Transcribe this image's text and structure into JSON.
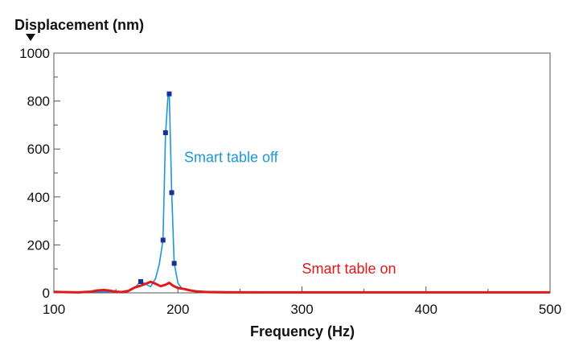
{
  "chart_data": {
    "type": "line",
    "ylabel": "Displacement (nm)",
    "xlabel": "Frequency (Hz)",
    "xlim": [
      100,
      500
    ],
    "ylim": [
      0,
      1000
    ],
    "x_ticks": [
      100,
      200,
      300,
      400,
      500
    ],
    "y_ticks": [
      0,
      200,
      400,
      600,
      800,
      1000
    ],
    "grid": false,
    "series": [
      {
        "name": "Smart table off",
        "color": "#1f96d8",
        "x": [
          100,
          120,
          140,
          155,
          162,
          166,
          170,
          174,
          178,
          182,
          185,
          188,
          190,
          192,
          193,
          195,
          197,
          200,
          203,
          207,
          212,
          220,
          240,
          300,
          400,
          500
        ],
        "y": [
          5,
          4,
          4,
          6,
          12,
          25,
          50,
          36,
          26,
          60,
          120,
          220,
          660,
          820,
          830,
          420,
          125,
          40,
          20,
          12,
          8,
          6,
          5,
          3,
          3,
          3
        ],
        "markers": [
          {
            "x": 170,
            "y": 47
          },
          {
            "x": 188,
            "y": 220
          },
          {
            "x": 190,
            "y": 668
          },
          {
            "x": 193,
            "y": 830
          },
          {
            "x": 195,
            "y": 418
          },
          {
            "x": 197,
            "y": 123
          }
        ]
      },
      {
        "name": "Smart table on",
        "color": "#e01a1a",
        "x": [
          100,
          110,
          120,
          130,
          135,
          140,
          145,
          150,
          155,
          160,
          165,
          170,
          175,
          178,
          182,
          186,
          190,
          193,
          196,
          200,
          205,
          210,
          215,
          220,
          225,
          240,
          300,
          400,
          500
        ],
        "y": [
          4,
          3,
          2,
          5,
          10,
          12,
          9,
          5,
          3,
          8,
          22,
          30,
          40,
          46,
          38,
          28,
          34,
          42,
          30,
          20,
          16,
          10,
          6,
          4,
          3,
          2,
          2,
          2,
          2
        ]
      }
    ],
    "annotations": [
      {
        "text": "Smart table off",
        "x": 205,
        "y": 545,
        "color": "#1f96d8"
      },
      {
        "text": "Smart table on",
        "x": 300,
        "y": 80,
        "color": "#e01a1a"
      }
    ]
  }
}
